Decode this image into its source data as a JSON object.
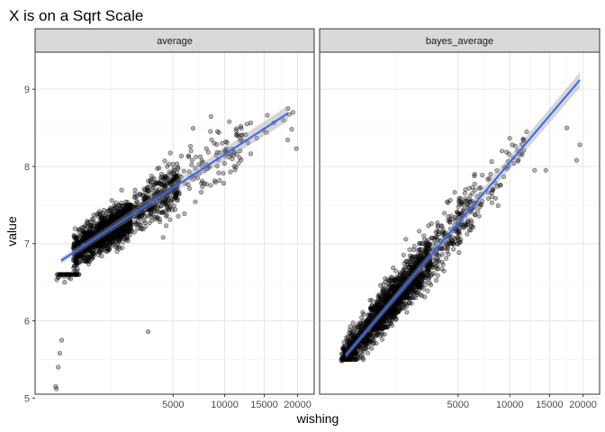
{
  "chart_data": {
    "type": "scatter",
    "title": "X is on a Sqrt Scale",
    "xlabel": "wishing",
    "ylabel": "value",
    "x_scale": "sqrt",
    "x_ticks": [
      5000,
      10000,
      15000,
      20000
    ],
    "y_ticks": [
      5,
      6,
      7,
      8,
      9
    ],
    "xlim": [
      0,
      20500
    ],
    "ylim": [
      5.05,
      9.48
    ],
    "grid": true,
    "point_color": "#000000",
    "smooth_color": "#3366FF",
    "ribbon_color": "#999999",
    "facets": [
      {
        "label": "average",
        "trend": {
          "x": [
            50,
            18500
          ],
          "y": [
            6.78,
            8.69
          ]
        },
        "clusters": [
          {
            "x": [
              200,
              2200
            ],
            "y": [
              6.55,
              7.5
            ],
            "n": 900
          },
          {
            "x": [
              800,
              5500
            ],
            "y": [
              6.9,
              8.0
            ],
            "n": 600
          },
          {
            "x": [
              3000,
              12000
            ],
            "y": [
              7.0,
              8.7
            ],
            "n": 150
          },
          {
            "x": [
              10000,
              19500
            ],
            "y": [
              7.6,
              8.7
            ],
            "n": 25
          },
          {
            "x": [
              20,
              300
            ],
            "y": [
              5.5,
              6.6
            ],
            "n": 60
          }
        ],
        "extra_points": [
          {
            "x": 16,
            "y": 5.15
          },
          {
            "x": 20,
            "y": 5.12
          },
          {
            "x": 30,
            "y": 5.4
          },
          {
            "x": 40,
            "y": 5.58
          },
          {
            "x": 55,
            "y": 5.75
          },
          {
            "x": 3200,
            "y": 5.86
          },
          {
            "x": 18500,
            "y": 8.75
          },
          {
            "x": 19800,
            "y": 8.23
          }
        ]
      },
      {
        "label": "bayes_average",
        "trend": {
          "x": [
            50,
            19500
          ],
          "y": [
            5.55,
            9.12
          ]
        },
        "clusters": [
          {
            "x": [
              30,
              1500
            ],
            "y": [
              5.5,
              6.6
            ],
            "n": 700
          },
          {
            "x": [
              500,
              3000
            ],
            "y": [
              5.9,
              7.0
            ],
            "n": 700
          },
          {
            "x": [
              1500,
              6500
            ],
            "y": [
              6.3,
              7.9
            ],
            "n": 350
          },
          {
            "x": [
              4000,
              12000
            ],
            "y": [
              7.0,
              8.4
            ],
            "n": 80
          },
          {
            "x": [
              20,
              400
            ],
            "y": [
              5.48,
              5.75
            ],
            "n": 80
          }
        ],
        "extra_points": [
          {
            "x": 17500,
            "y": 8.5
          },
          {
            "x": 19500,
            "y": 8.28
          },
          {
            "x": 19000,
            "y": 8.08
          },
          {
            "x": 13000,
            "y": 7.95
          },
          {
            "x": 14500,
            "y": 7.95
          },
          {
            "x": 12000,
            "y": 8.45
          }
        ]
      }
    ]
  }
}
